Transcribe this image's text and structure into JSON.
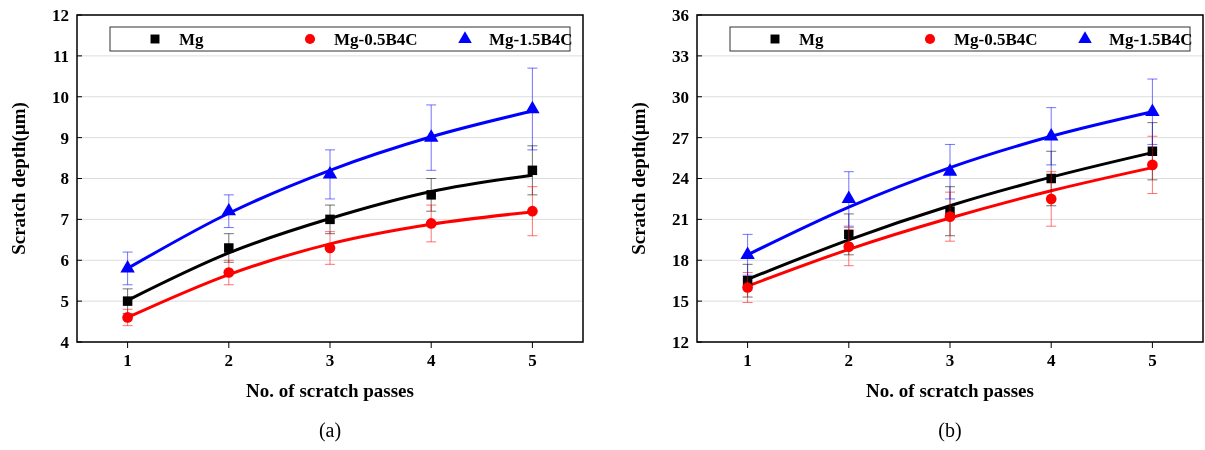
{
  "chart_data": [
    {
      "type": "scatter",
      "xlabel": "No. of scratch passes",
      "ylabel": "Scratch depth(μm)",
      "annotations": [
        "(a)"
      ],
      "xlim": [
        0.5,
        5.5
      ],
      "xticks": [
        1,
        2,
        3,
        4,
        5
      ],
      "ylim": [
        4,
        12
      ],
      "yticks": [
        4,
        5,
        6,
        7,
        8,
        9,
        10,
        11,
        12
      ],
      "grid": "y",
      "legend": "top",
      "x": [
        1,
        2,
        3,
        4,
        5
      ],
      "series": [
        {
          "type": "line",
          "color": "#000000",
          "line_style": "solid",
          "x": [
            1,
            2,
            3,
            4,
            5
          ],
          "values": [
            5.02,
            6.18,
            7.02,
            7.68,
            8.08
          ]
        },
        {
          "type": "line",
          "color": "#ff0000",
          "line_style": "solid",
          "x": [
            1,
            2,
            3,
            4,
            5
          ],
          "values": [
            4.6,
            5.65,
            6.4,
            6.88,
            7.18
          ]
        },
        {
          "type": "line",
          "color": "#0000ff",
          "line_style": "solid",
          "x": [
            1,
            2,
            3,
            4,
            5
          ],
          "values": [
            5.8,
            7.15,
            8.2,
            9.02,
            9.65
          ]
        },
        {
          "name": "Mg",
          "type": "scatter",
          "marker": "square",
          "color": "#000000",
          "values": [
            5.0,
            6.3,
            7.0,
            7.6,
            8.2
          ],
          "errors": [
            0.3,
            0.35,
            0.35,
            0.4,
            0.6
          ]
        },
        {
          "name": "Mg-0.5B4C",
          "type": "scatter",
          "marker": "circle",
          "color": "#ff0000",
          "values": [
            4.6,
            5.7,
            6.3,
            6.9,
            7.2
          ],
          "errors": [
            0.2,
            0.3,
            0.4,
            0.45,
            0.6
          ]
        },
        {
          "name": "Mg-1.5B4C",
          "type": "scatter",
          "marker": "triangle",
          "color": "#0000ff",
          "values": [
            5.8,
            7.2,
            8.1,
            9.0,
            9.7
          ],
          "errors": [
            0.4,
            0.4,
            0.6,
            0.8,
            1.0
          ]
        }
      ]
    },
    {
      "type": "scatter",
      "xlabel": "No. of scratch passes",
      "ylabel": "Scratch depth(μm)",
      "annotations": [
        "(b)"
      ],
      "xlim": [
        0.5,
        5.5
      ],
      "xticks": [
        1,
        2,
        3,
        4,
        5
      ],
      "ylim": [
        12,
        36
      ],
      "yticks": [
        12,
        15,
        18,
        21,
        24,
        27,
        30,
        33,
        36
      ],
      "grid": "y",
      "legend": "top",
      "x": [
        1,
        2,
        3,
        4,
        5
      ],
      "series": [
        {
          "type": "line",
          "color": "#000000",
          "line_style": "solid",
          "x": [
            1,
            2,
            3,
            4,
            5
          ],
          "values": [
            16.6,
            19.5,
            22.0,
            24.1,
            25.9
          ]
        },
        {
          "type": "line",
          "color": "#ff0000",
          "line_style": "solid",
          "x": [
            1,
            2,
            3,
            4,
            5
          ],
          "values": [
            16.1,
            18.8,
            21.1,
            23.1,
            24.8
          ]
        },
        {
          "type": "line",
          "color": "#0000ff",
          "line_style": "solid",
          "x": [
            1,
            2,
            3,
            4,
            5
          ],
          "values": [
            18.4,
            21.9,
            24.8,
            27.1,
            28.9
          ]
        },
        {
          "name": "Mg",
          "type": "scatter",
          "marker": "square",
          "color": "#000000",
          "values": [
            16.5,
            19.9,
            21.6,
            24.0,
            26.0
          ],
          "errors": [
            1.2,
            1.5,
            1.8,
            2.0,
            2.1
          ]
        },
        {
          "name": "Mg-0.5B4C",
          "type": "scatter",
          "marker": "circle",
          "color": "#ff0000",
          "values": [
            16.0,
            19.0,
            21.2,
            22.5,
            25.0
          ],
          "errors": [
            1.1,
            1.4,
            1.8,
            2.0,
            2.1
          ]
        },
        {
          "name": "Mg-1.5B4C",
          "type": "scatter",
          "marker": "triangle",
          "color": "#0000ff",
          "values": [
            18.4,
            22.5,
            24.5,
            27.1,
            28.9
          ],
          "errors": [
            1.5,
            2.0,
            2.0,
            2.1,
            2.4
          ]
        }
      ]
    }
  ]
}
